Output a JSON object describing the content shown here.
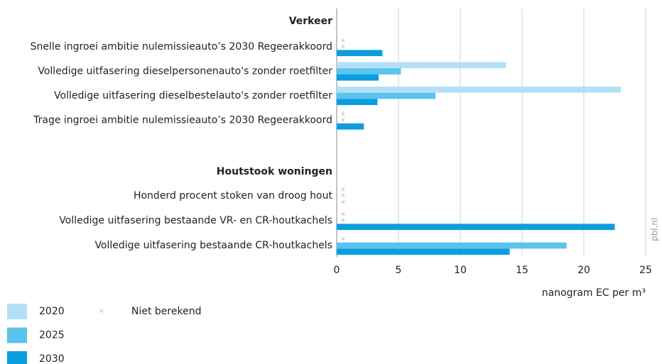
{
  "chart_data": {
    "type": "bar",
    "orientation": "horizontal",
    "x_label": "nanogram EC per m³",
    "source": "pbl.nl",
    "missing_marker": "*",
    "missing_label": "Niet berekend",
    "xlim": [
      0,
      25
    ],
    "xticks": [
      0,
      5,
      10,
      15,
      20,
      25
    ],
    "grid": true,
    "series": [
      {
        "name": "2020",
        "color": "#b3e0f7"
      },
      {
        "name": "2025",
        "color": "#5bc3ee"
      },
      {
        "name": "2030",
        "color": "#0a9ee0"
      }
    ],
    "groups": [
      {
        "name": "Verkeer",
        "categories": [
          "Snelle ingroei ambitie nulemissieauto’s 2030 Regeerakkoord",
          "Volledige uitfasering dieselpersonenauto's zonder roetfilter",
          "Volledige uitfasering dieselbestelauto's zonder roetfilter",
          "Trage ingroei ambitie nulemissieauto’s 2030 Regeerakkoord"
        ],
        "values": [
          [
            null,
            null,
            3.7
          ],
          [
            13.7,
            5.2,
            3.4
          ],
          [
            23.0,
            8.0,
            3.3
          ],
          [
            null,
            null,
            2.2
          ]
        ]
      },
      {
        "name": "Houtstook woningen",
        "categories": [
          "Honderd procent stoken van droog hout",
          "Volledige uitfasering bestaande VR- en CR-houtkachels",
          "Volledige uitfasering bestaande CR-houtkachels"
        ],
        "values": [
          [
            null,
            null,
            null
          ],
          [
            null,
            null,
            22.5
          ],
          [
            null,
            18.6,
            14.0
          ]
        ]
      }
    ]
  }
}
